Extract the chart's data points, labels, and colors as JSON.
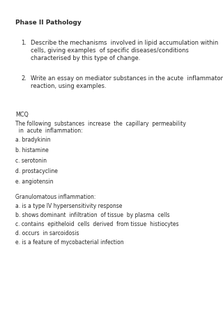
{
  "bg_color": "#ffffff",
  "title": "Phase II Pathology",
  "q1_label": "1.",
  "q1_line1": "Describe the mechanisms  involved in lipid accumulation within",
  "q1_line2": "cells, giving examples  of specific diseases/conditions",
  "q1_line3": "characterised by this type of change.",
  "q2_label": "2.",
  "q2_line1": "Write an essay on mediator substances in the acute  inflammatory",
  "q2_line2": "reaction, using examples.",
  "mcq_header": "MCQ",
  "mcq_intro1": "The following  substances  increase  the  capillary  permeability",
  "mcq_intro2": "  in  acute  inflammation:",
  "mcq_a": "a. bradykinin",
  "mcq_b": "b. histamine",
  "mcq_c": "c. serotonin",
  "mcq_d": "d. prostacycline",
  "mcq_e": "e. angiotensin",
  "gran_header": "Granulomatous inflammation:",
  "gran_a": "a. is a type IV hypersensitivity response",
  "gran_b": "b. shows dominant  infiltration  of tissue  by plasma  cells",
  "gran_c": "c. contains  epitheloid  cells  derived  from tissue  histiocytes",
  "gran_d": "d. occurs  in sarcoidosis",
  "gran_e": "e. is a feature of mycobacterial infection"
}
